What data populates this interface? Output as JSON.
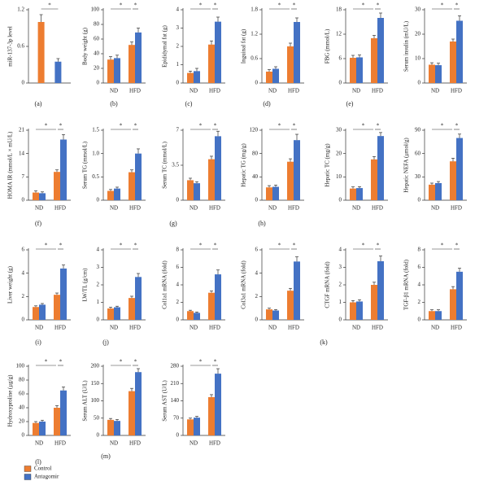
{
  "legend": [
    {
      "name": "Control",
      "color": "#ed7d31"
    },
    {
      "name": "Antagomir",
      "color": "#4472c4"
    }
  ],
  "panel_labels": [
    "(a)",
    "(b)",
    "(c)",
    "(d)",
    "(e)",
    "(f)",
    "(g)",
    "(h)",
    "(i)",
    "(j)",
    "(k)",
    "(l)",
    "(m)"
  ],
  "chart_data": [
    {
      "type": "bar",
      "ylabel": "miR-137-3p level",
      "categories": [
        null
      ],
      "series": [
        {
          "values": [
            1.0
          ],
          "errors": [
            0.12
          ]
        },
        {
          "values": [
            0.35
          ],
          "errors": [
            0.05
          ]
        }
      ],
      "ylim": [
        0,
        1.2
      ],
      "yticks": [
        0,
        0.6,
        1.2
      ],
      "significance": [
        "*"
      ]
    },
    {
      "type": "bar",
      "ylabel": "Body weight (g)",
      "categories": [
        "ND",
        "HFD"
      ],
      "series": [
        {
          "values": [
            32,
            52
          ],
          "errors": [
            4,
            4
          ]
        },
        {
          "values": [
            34,
            69
          ],
          "errors": [
            4,
            6
          ]
        }
      ],
      "ylim": [
        0,
        100
      ],
      "yticks": [
        0,
        20,
        40,
        60,
        80,
        100
      ],
      "significance": [
        "*",
        "*"
      ]
    },
    {
      "type": "bar",
      "ylabel": "Epididymal fat (g)",
      "categories": [
        "ND",
        "HFD"
      ],
      "series": [
        {
          "values": [
            0.55,
            2.1
          ],
          "errors": [
            0.1,
            0.2
          ]
        },
        {
          "values": [
            0.65,
            3.35
          ],
          "errors": [
            0.15,
            0.25
          ]
        }
      ],
      "ylim": [
        0,
        4
      ],
      "yticks": [
        0,
        1,
        2,
        3,
        4
      ],
      "significance": [
        "*",
        "*"
      ]
    },
    {
      "type": "bar",
      "ylabel": "Inguinal fat (g)",
      "categories": [
        "ND",
        "HFD"
      ],
      "series": [
        {
          "values": [
            0.28,
            0.9
          ],
          "errors": [
            0.05,
            0.08
          ]
        },
        {
          "values": [
            0.35,
            1.5
          ],
          "errors": [
            0.05,
            0.1
          ]
        }
      ],
      "ylim": [
        0,
        1.8
      ],
      "yticks": [
        0,
        0.6,
        1.2,
        1.8
      ],
      "significance": [
        "*",
        "*"
      ]
    },
    {
      "type": "bar",
      "ylabel": "FBG (mmol/L)",
      "categories": [
        "ND",
        "HFD"
      ],
      "series": [
        {
          "values": [
            6.2,
            11
          ],
          "errors": [
            0.6,
            0.7
          ]
        },
        {
          "values": [
            6.3,
            16
          ],
          "errors": [
            0.6,
            1.2
          ]
        }
      ],
      "ylim": [
        0,
        18
      ],
      "yticks": [
        0,
        6,
        12,
        18
      ],
      "significance": [
        "*",
        "*"
      ]
    },
    {
      "type": "bar",
      "ylabel": "Serum insulin (mU/L)",
      "categories": [
        "ND",
        "HFD"
      ],
      "series": [
        {
          "values": [
            7.5,
            17
          ],
          "errors": [
            0.8,
            1
          ]
        },
        {
          "values": [
            7.3,
            25.5
          ],
          "errors": [
            0.8,
            2
          ]
        }
      ],
      "ylim": [
        0,
        30
      ],
      "yticks": [
        0,
        10,
        20,
        30
      ],
      "significance": [
        "*",
        "*"
      ]
    },
    {
      "type": "bar",
      "ylabel": "HOMA IR (mmol/L × mU/L)",
      "categories": [
        "ND",
        "HFD"
      ],
      "series": [
        {
          "values": [
            2.3,
            8.5
          ],
          "errors": [
            0.5,
            0.6
          ]
        },
        {
          "values": [
            2.1,
            18.2
          ],
          "errors": [
            0.4,
            1.5
          ]
        }
      ],
      "ylim": [
        0,
        21
      ],
      "yticks": [
        0,
        7,
        14,
        21
      ],
      "significance": [
        "*",
        "*"
      ]
    },
    {
      "type": "bar",
      "ylabel": "Serum TG (mmol/L)",
      "categories": [
        "ND",
        "HFD"
      ],
      "series": [
        {
          "values": [
            0.2,
            0.6
          ],
          "errors": [
            0.03,
            0.05
          ]
        },
        {
          "values": [
            0.25,
            1.0
          ],
          "errors": [
            0.03,
            0.1
          ]
        }
      ],
      "ylim": [
        0,
        1.5
      ],
      "yticks": [
        0,
        0.5,
        {
          "value": 1,
          "label": "1.0"
        },
        1.5
      ],
      "significance": [
        "*",
        "*"
      ]
    },
    {
      "type": "bar",
      "ylabel": "Serum TC (mmol/L)",
      "categories": [
        "ND",
        "HFD"
      ],
      "series": [
        {
          "values": [
            2.0,
            4.1
          ],
          "errors": [
            0.2,
            0.3
          ]
        },
        {
          "values": [
            1.7,
            6.4
          ],
          "errors": [
            0.15,
            0.5
          ]
        }
      ],
      "ylim": [
        0,
        7
      ],
      "yticks": [
        0,
        3.5,
        7
      ],
      "significance": [
        "*",
        "*"
      ]
    },
    {
      "type": "bar",
      "ylabel": "Hepatic TG (mg/g)",
      "categories": [
        "ND",
        "HFD"
      ],
      "series": [
        {
          "values": [
            22,
            66
          ],
          "errors": [
            3,
            5
          ]
        },
        {
          "values": [
            23,
            103
          ],
          "errors": [
            3,
            10
          ]
        }
      ],
      "ylim": [
        0,
        120
      ],
      "yticks": [
        0,
        40,
        80,
        120
      ],
      "significance": [
        "*",
        "*"
      ]
    },
    {
      "type": "bar",
      "ylabel": "Hepatic TC (mg/g)",
      "categories": [
        "ND",
        "HFD"
      ],
      "series": [
        {
          "values": [
            5,
            17.5
          ],
          "errors": [
            0.7,
            1.2
          ]
        },
        {
          "values": [
            5.2,
            27.5
          ],
          "errors": [
            0.6,
            1.5
          ]
        }
      ],
      "ylim": [
        0,
        30
      ],
      "yticks": [
        0,
        10,
        20,
        30
      ],
      "significance": [
        "*",
        "*"
      ]
    },
    {
      "type": "bar",
      "ylabel": "Hepatic NEFA (μmol/g)",
      "categories": [
        "ND",
        "HFD"
      ],
      "series": [
        {
          "values": [
            20,
            50
          ],
          "errors": [
            2,
            4
          ]
        },
        {
          "values": [
            22,
            80
          ],
          "errors": [
            2,
            5
          ]
        }
      ],
      "ylim": [
        0,
        90
      ],
      "yticks": [
        0,
        30,
        60,
        90
      ],
      "significance": [
        "*",
        "*"
      ]
    },
    {
      "type": "bar",
      "ylabel": "Liver weight (g)",
      "categories": [
        "ND",
        "HFD"
      ],
      "series": [
        {
          "values": [
            1.1,
            2.15
          ],
          "errors": [
            0.1,
            0.15
          ]
        },
        {
          "values": [
            1.3,
            4.4
          ],
          "errors": [
            0.1,
            0.3
          ]
        }
      ],
      "ylim": [
        0,
        6
      ],
      "yticks": [
        0,
        2,
        4,
        6
      ],
      "significance": [
        "*",
        "*"
      ]
    },
    {
      "type": "bar",
      "ylabel": "LW/TL (g/cm)",
      "categories": [
        "ND",
        "HFD"
      ],
      "series": [
        {
          "values": [
            0.65,
            1.25
          ],
          "errors": [
            0.07,
            0.1
          ]
        },
        {
          "values": [
            0.72,
            2.45
          ],
          "errors": [
            0.06,
            0.2
          ]
        }
      ],
      "ylim": [
        0,
        4
      ],
      "yticks": [
        0,
        1,
        2,
        3,
        4
      ],
      "significance": [
        "*",
        "*"
      ]
    },
    {
      "type": "bar",
      "ylabel": "Col1a1 mRNA (fold)",
      "categories": [
        "ND",
        "HFD"
      ],
      "series": [
        {
          "values": [
            1.0,
            3.1
          ],
          "errors": [
            0.1,
            0.2
          ]
        },
        {
          "values": [
            0.8,
            5.2
          ],
          "errors": [
            0.1,
            0.5
          ]
        }
      ],
      "ylim": [
        0,
        8
      ],
      "yticks": [
        0,
        2,
        4,
        6,
        8
      ],
      "significance": [
        "*",
        "*"
      ]
    },
    {
      "type": "bar",
      "ylabel": "Col3a1 mRNA (fold)",
      "categories": [
        "ND",
        "HFD"
      ],
      "series": [
        {
          "values": [
            0.9,
            2.5
          ],
          "errors": [
            0.1,
            0.2
          ]
        },
        {
          "values": [
            0.8,
            5.0
          ],
          "errors": [
            0.08,
            0.4
          ]
        }
      ],
      "ylim": [
        0,
        6
      ],
      "yticks": [
        0,
        2,
        4,
        6
      ],
      "significance": [
        "*",
        "*"
      ]
    },
    {
      "type": "bar",
      "ylabel": "CTGF mRNA (fold)",
      "categories": [
        "ND",
        "HFD"
      ],
      "series": [
        {
          "values": [
            1.0,
            2.0
          ],
          "errors": [
            0.1,
            0.15
          ]
        },
        {
          "values": [
            1.05,
            3.35
          ],
          "errors": [
            0.1,
            0.3
          ]
        }
      ],
      "ylim": [
        0,
        4
      ],
      "yticks": [
        0,
        1,
        2,
        3,
        4
      ],
      "significance": [
        "*",
        "*"
      ]
    },
    {
      "type": "bar",
      "ylabel": "TGF-β1 mRNA (fold)",
      "categories": [
        "ND",
        "HFD"
      ],
      "series": [
        {
          "values": [
            1.0,
            3.5
          ],
          "errors": [
            0.15,
            0.3
          ]
        },
        {
          "values": [
            1.0,
            5.5
          ],
          "errors": [
            0.15,
            0.4
          ]
        }
      ],
      "ylim": [
        0,
        8
      ],
      "yticks": [
        0,
        2,
        4,
        6,
        8
      ],
      "significance": [
        "*",
        "*"
      ]
    },
    {
      "type": "bar",
      "ylabel": "Hydroxyproline (μg/g)",
      "categories": [
        "ND",
        "HFD"
      ],
      "series": [
        {
          "values": [
            18,
            40
          ],
          "errors": [
            2,
            3
          ]
        },
        {
          "values": [
            20,
            65
          ],
          "errors": [
            2,
            5
          ]
        }
      ],
      "ylim": [
        0,
        100
      ],
      "yticks": [
        0,
        20,
        40,
        60,
        80,
        100
      ],
      "significance": [
        "*",
        "*"
      ]
    },
    {
      "type": "bar",
      "ylabel": "Serum ALT (U/L)",
      "categories": [
        "ND",
        "HFD"
      ],
      "series": [
        {
          "values": [
            45,
            128
          ],
          "errors": [
            4,
            8
          ]
        },
        {
          "values": [
            42,
            183
          ],
          "errors": [
            4,
            10
          ]
        }
      ],
      "ylim": [
        0,
        200
      ],
      "yticks": [
        0,
        50,
        100,
        150,
        200
      ],
      "significance": [
        "*",
        "*"
      ]
    },
    {
      "type": "bar",
      "ylabel": "Serum AST (U/L)",
      "categories": [
        "ND",
        "HFD"
      ],
      "series": [
        {
          "values": [
            65,
            155
          ],
          "errors": [
            5,
            10
          ]
        },
        {
          "values": [
            72,
            250
          ],
          "errors": [
            5,
            20
          ]
        }
      ],
      "ylim": [
        0,
        280
      ],
      "yticks": [
        0,
        70,
        140,
        210,
        280
      ],
      "significance": [
        "*",
        "*"
      ]
    }
  ]
}
